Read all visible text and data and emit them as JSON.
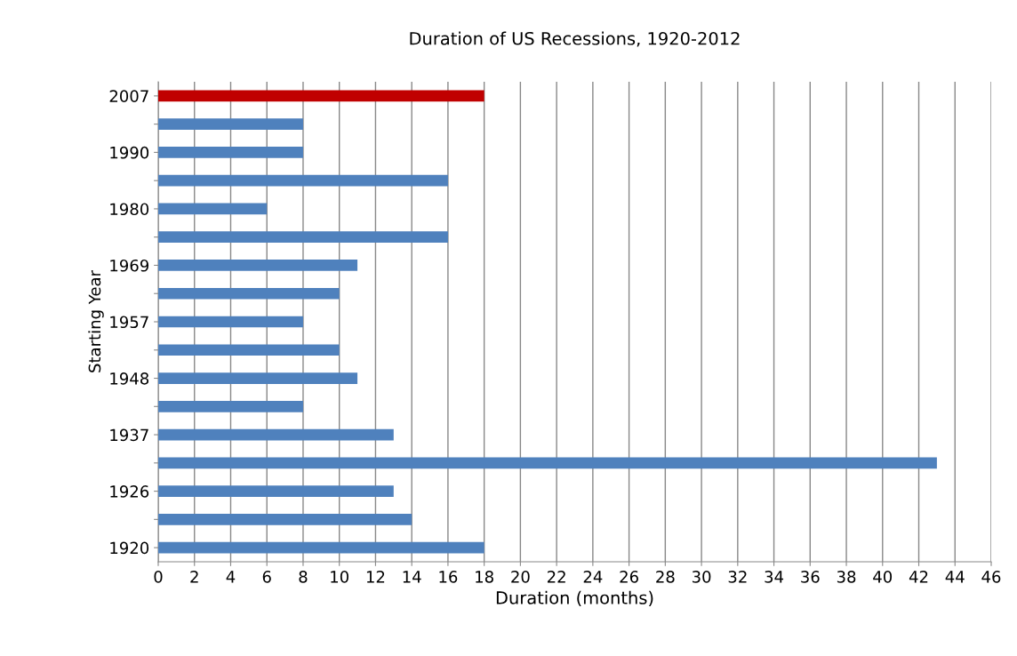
{
  "chart_data": {
    "type": "bar",
    "orientation": "horizontal",
    "title": "Duration of US Recessions, 1920-2012",
    "xlabel": "Duration (months)",
    "ylabel": "Starting Year",
    "categories": [
      "2007",
      null,
      "1990",
      null,
      "1980",
      null,
      "1969",
      null,
      "1957",
      null,
      "1948",
      null,
      "1937",
      null,
      "1926",
      null,
      "1920"
    ],
    "values": [
      18,
      8,
      8,
      16,
      6,
      16,
      11,
      10,
      8,
      10,
      11,
      8,
      13,
      43,
      13,
      14,
      18
    ],
    "colors": [
      "#c00000",
      "#4f81bd",
      "#4f81bd",
      "#4f81bd",
      "#4f81bd",
      "#4f81bd",
      "#4f81bd",
      "#4f81bd",
      "#4f81bd",
      "#4f81bd",
      "#4f81bd",
      "#4f81bd",
      "#4f81bd",
      "#4f81bd",
      "#4f81bd",
      "#4f81bd",
      "#4f81bd"
    ],
    "xlim": [
      0,
      46
    ],
    "xticks": [
      0,
      2,
      4,
      6,
      8,
      10,
      12,
      14,
      16,
      18,
      20,
      22,
      24,
      26,
      28,
      30,
      32,
      34,
      36,
      38,
      40,
      42,
      44,
      46
    ],
    "grid": "x",
    "legend": false
  }
}
